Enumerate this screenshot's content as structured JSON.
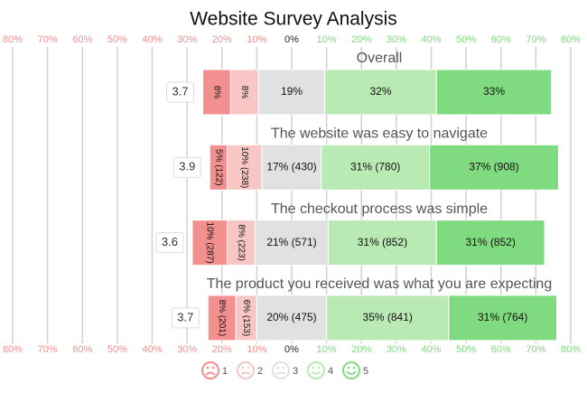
{
  "chart_data": {
    "type": "diverging-bar",
    "title": "Website Survey Analysis",
    "categories": [
      "Overall",
      "The website was easy to navigate",
      "The checkout process was simple",
      "The product you received was what you are expecting"
    ],
    "means": [
      3.7,
      3.9,
      3.6,
      3.7
    ],
    "series": [
      {
        "name": "1",
        "color": "#f28f8f",
        "values": [
          8,
          5,
          10,
          8
        ],
        "value_labels": [
          "8%",
          "5% (122)",
          "10% (287)",
          "8% (201)"
        ]
      },
      {
        "name": "2",
        "color": "#f9c6c6",
        "values": [
          8,
          10,
          8,
          6
        ],
        "value_labels": [
          "8%",
          "10% (238)",
          "8% (223)",
          "6% (153)"
        ]
      },
      {
        "name": "3",
        "color": "#e1e1e1",
        "values": [
          19,
          17,
          21,
          20
        ],
        "value_labels": [
          "19%",
          "17% (430)",
          "21% (571)",
          "20% (475)"
        ]
      },
      {
        "name": "4",
        "color": "#b9eab3",
        "values": [
          32,
          31,
          31,
          35
        ],
        "value_labels": [
          "32%",
          "31% (780)",
          "31% (852)",
          "35% (841)"
        ]
      },
      {
        "name": "5",
        "color": "#80da80",
        "values": [
          33,
          37,
          31,
          31
        ],
        "value_labels": [
          "33%",
          "37% (908)",
          "31% (852)",
          "31% (764)"
        ]
      }
    ],
    "xlim": [
      -80,
      80
    ],
    "xticks": [
      {
        "value": -80,
        "label": "80%"
      },
      {
        "value": -70,
        "label": "70%"
      },
      {
        "value": -60,
        "label": "60%"
      },
      {
        "value": -50,
        "label": "50%"
      },
      {
        "value": -40,
        "label": "40%"
      },
      {
        "value": -30,
        "label": "30%"
      },
      {
        "value": -20,
        "label": "20%"
      },
      {
        "value": -10,
        "label": "10%"
      },
      {
        "value": 0,
        "label": "0%"
      },
      {
        "value": 10,
        "label": "10%"
      },
      {
        "value": 20,
        "label": "20%"
      },
      {
        "value": 30,
        "label": "30%"
      },
      {
        "value": 40,
        "label": "40%"
      },
      {
        "value": 50,
        "label": "50%"
      },
      {
        "value": 60,
        "label": "60%"
      },
      {
        "value": 70,
        "label": "70%"
      },
      {
        "value": 80,
        "label": "80%"
      }
    ],
    "grid": true
  }
}
